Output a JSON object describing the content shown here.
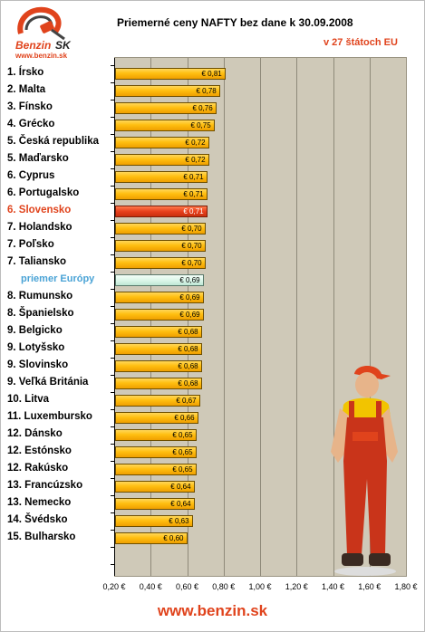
{
  "logo": {
    "word1": "Benzin",
    "word2": "SK",
    "url": "www.benzin.sk"
  },
  "header": {
    "title": "Priemerné ceny NAFTY bez dane k 30.09.2008",
    "subtitle": "v 27 štátoch EU"
  },
  "colors": {
    "bar": "#ffbf10",
    "highlight": "#e8401c",
    "average": "#d7f4e6",
    "plot_bg": "#cfc9b8",
    "accent": "#e0431c",
    "average_text": "#4aa3d6"
  },
  "chart_data": {
    "type": "bar",
    "orientation": "horizontal",
    "title": "Priemerné ceny NAFTY bez dane k 30.09.2008",
    "subtitle": "v 27 štátoch EU",
    "xlim": [
      0.2,
      1.8
    ],
    "xtick_labels": [
      "0,20 €",
      "0,40 €",
      "0,60 €",
      "0,80 €",
      "1,00 €",
      "1,20 €",
      "1,40 €",
      "1,60 €",
      "1,80 €"
    ],
    "grid": true,
    "categories": [
      "1. Írsko",
      "2. Malta",
      "3. Fínsko",
      "4. Grécko",
      "5. Česká republika",
      "5. Maďarsko",
      "6. Cyprus",
      "6. Portugalsko",
      "6. Slovensko",
      "7. Holandsko",
      "7. Poľsko",
      "7. Taliansko",
      "priemer Európy",
      "8. Rumunsko",
      "8. Španielsko",
      "9. Belgicko",
      "9. Lotyšsko",
      "9. Slovinsko",
      "9. Veľká Británia",
      "10. Litva",
      "11. Luxembursko",
      "12. Dánsko",
      "12. Estónsko",
      "12. Rakúsko",
      "13. Francúzsko",
      "13. Nemecko",
      "14. Švédsko",
      "15. Bulharsko"
    ],
    "values": [
      0.81,
      0.78,
      0.76,
      0.75,
      0.72,
      0.72,
      0.71,
      0.71,
      0.71,
      0.7,
      0.7,
      0.7,
      0.69,
      0.69,
      0.69,
      0.68,
      0.68,
      0.68,
      0.68,
      0.67,
      0.66,
      0.65,
      0.65,
      0.65,
      0.64,
      0.64,
      0.63,
      0.6
    ],
    "value_labels": [
      "€ 0,81",
      "€ 0,78",
      "€ 0,76",
      "€ 0,75",
      "€ 0,72",
      "€ 0,72",
      "€ 0,71",
      "€ 0,71",
      "€ 0,71",
      "€ 0,70",
      "€ 0,70",
      "€ 0,70",
      "€ 0,69",
      "€ 0,69",
      "€ 0,69",
      "€ 0,68",
      "€ 0,68",
      "€ 0,68",
      "€ 0,68",
      "€ 0,67",
      "€ 0,66",
      "€ 0,65",
      "€ 0,65",
      "€ 0,65",
      "€ 0,64",
      "€ 0,64",
      "€ 0,63",
      "€ 0,60"
    ],
    "highlight": [
      "6. Slovensko"
    ],
    "average": [
      "priemer Európy"
    ]
  },
  "footer": {
    "url": "www.benzin.sk"
  }
}
